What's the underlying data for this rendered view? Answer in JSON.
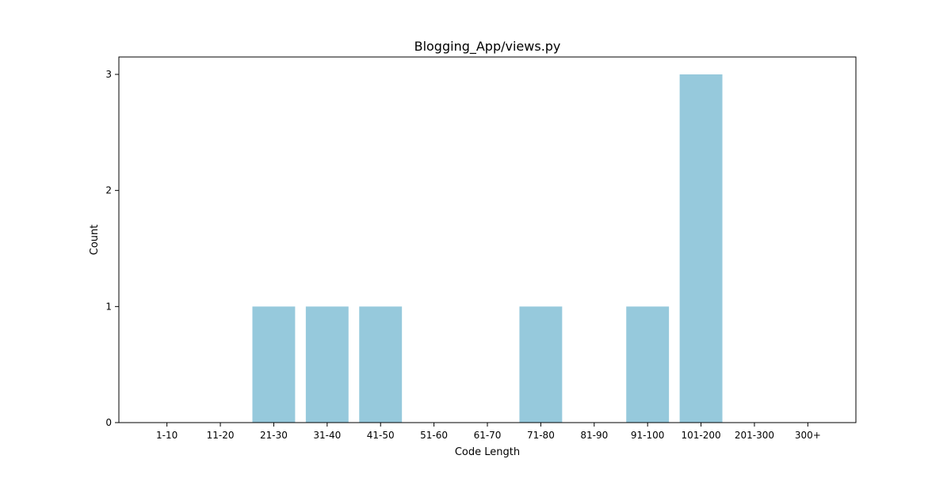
{
  "chart_data": {
    "type": "bar",
    "title": "Blogging_App/views.py",
    "xlabel": "Code Length",
    "ylabel": "Count",
    "categories": [
      "1-10",
      "11-20",
      "21-30",
      "31-40",
      "41-50",
      "51-60",
      "61-70",
      "71-80",
      "81-90",
      "91-100",
      "101-200",
      "201-300",
      "300+"
    ],
    "values": [
      0,
      0,
      1,
      1,
      1,
      0,
      0,
      1,
      0,
      1,
      3,
      0,
      0
    ],
    "yticks": [
      0,
      1,
      2,
      3
    ],
    "ylim": [
      0,
      3.15
    ],
    "bar_color": "#96c9dc",
    "grid": false,
    "legend": "none"
  }
}
